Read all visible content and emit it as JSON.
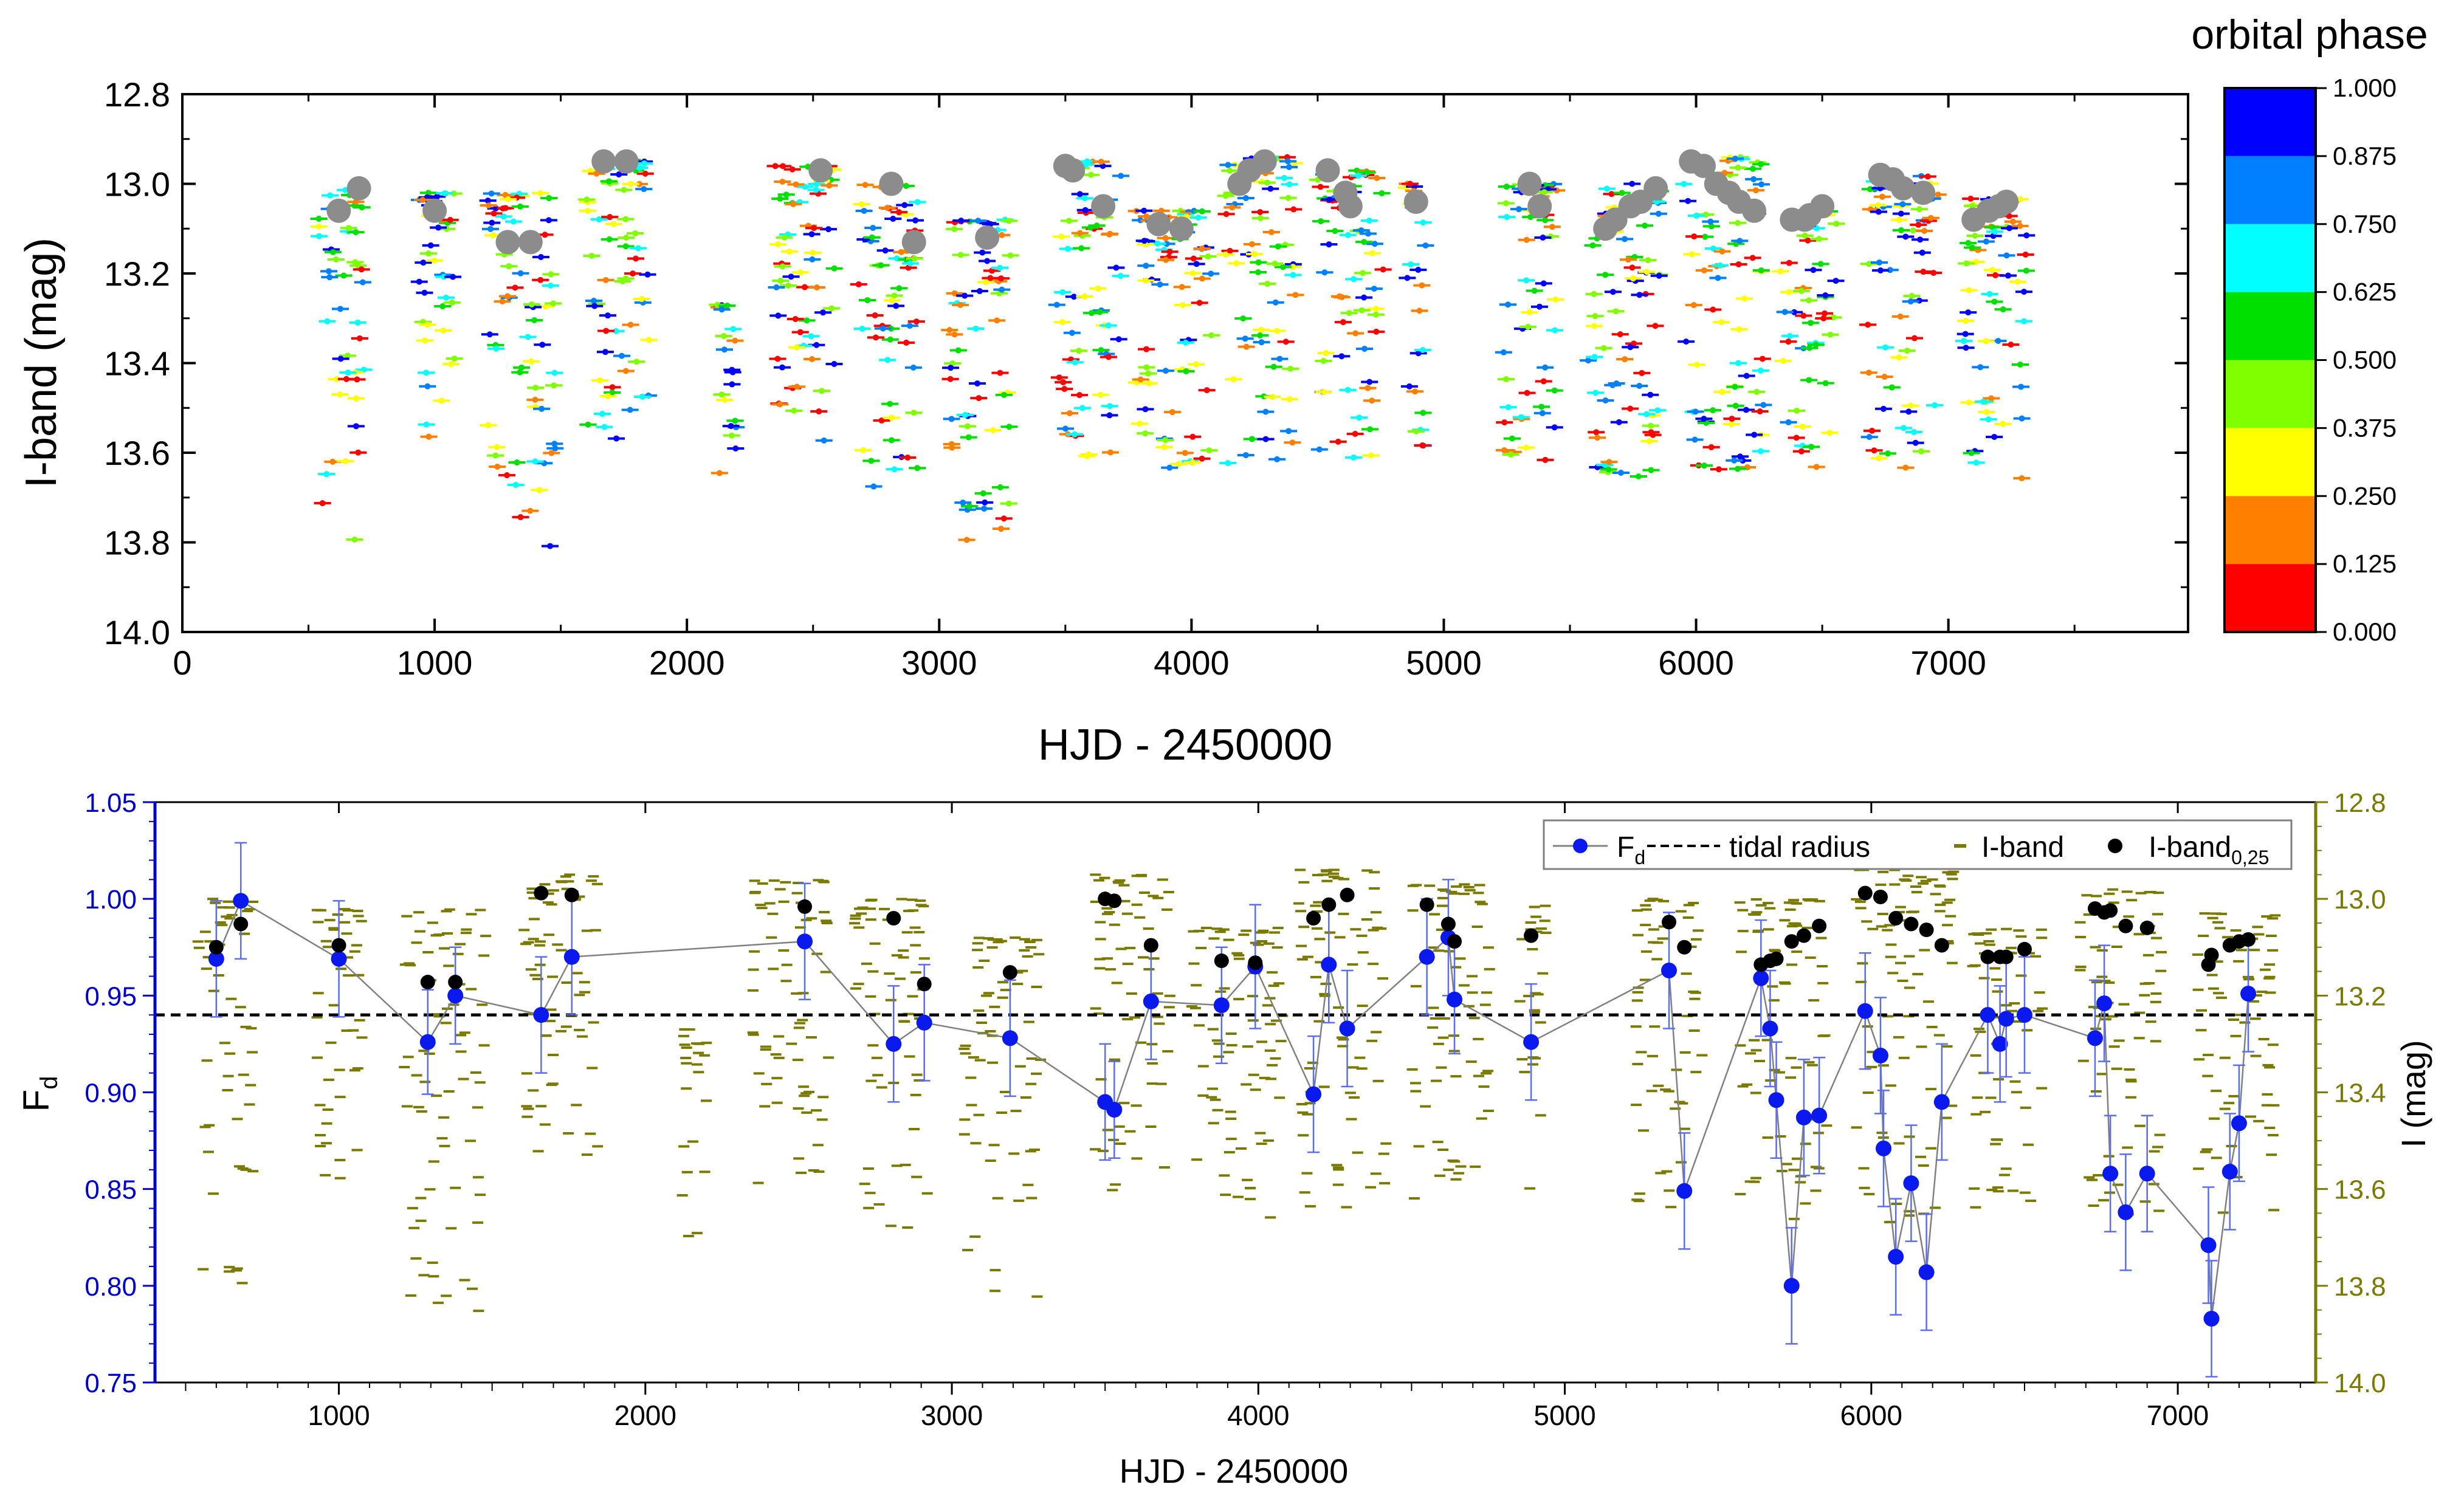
{
  "chart_data": [
    {
      "type": "scatter",
      "panel": "top",
      "xlabel": "HJD - 2450000",
      "ylabel": "I-band (mag)",
      "xlim": [
        0,
        7950
      ],
      "ylim": [
        14.0,
        12.8
      ],
      "y_inverted": true,
      "xticks": [
        "0",
        "1000",
        "2000",
        "3000",
        "4000",
        "5000",
        "6000",
        "7000"
      ],
      "yticks": [
        "12.8",
        "13.0",
        "13.2",
        "13.4",
        "13.6",
        "13.8",
        "14.0"
      ],
      "colorbar": {
        "title": "orbital phase",
        "ticks": [
          "0.000",
          "0.125",
          "0.250",
          "0.375",
          "0.500",
          "0.625",
          "0.750",
          "0.875",
          "1.000"
        ],
        "colors": [
          "#ff0000",
          "#ff8000",
          "#ffff00",
          "#80ff00",
          "#00e000",
          "#00ffff",
          "#0080ff",
          "#0000ff"
        ]
      },
      "observing_seasons": [
        {
          "start": 540,
          "end": 720,
          "top": 13.0,
          "bottom": 13.8
        },
        {
          "start": 920,
          "end": 1080,
          "top": 13.02,
          "bottom": 13.58
        },
        {
          "start": 1210,
          "end": 1480,
          "top": 13.02,
          "bottom": 13.86
        },
        {
          "start": 1600,
          "end": 1850,
          "top": 12.95,
          "bottom": 13.58
        },
        {
          "start": 2120,
          "end": 2200,
          "top": 13.27,
          "bottom": 13.7
        },
        {
          "start": 2350,
          "end": 2600,
          "top": 12.96,
          "bottom": 13.62
        },
        {
          "start": 2680,
          "end": 2920,
          "top": 13.0,
          "bottom": 13.68
        },
        {
          "start": 3040,
          "end": 3290,
          "top": 13.08,
          "bottom": 13.84
        },
        {
          "start": 3460,
          "end": 3720,
          "top": 12.95,
          "bottom": 13.62
        },
        {
          "start": 3780,
          "end": 4080,
          "top": 13.06,
          "bottom": 13.67
        },
        {
          "start": 4130,
          "end": 4420,
          "top": 12.94,
          "bottom": 13.64
        },
        {
          "start": 4500,
          "end": 4760,
          "top": 12.97,
          "bottom": 13.62
        },
        {
          "start": 4850,
          "end": 4940,
          "top": 13.0,
          "bottom": 13.6
        },
        {
          "start": 5230,
          "end": 5450,
          "top": 13.0,
          "bottom": 13.64
        },
        {
          "start": 5570,
          "end": 5860,
          "top": 13.0,
          "bottom": 13.67
        },
        {
          "start": 5950,
          "end": 6270,
          "top": 12.94,
          "bottom": 13.67
        },
        {
          "start": 6330,
          "end": 6560,
          "top": 13.06,
          "bottom": 13.64
        },
        {
          "start": 6680,
          "end": 6960,
          "top": 12.98,
          "bottom": 13.66
        },
        {
          "start": 7060,
          "end": 7320,
          "top": 13.03,
          "bottom": 13.66
        }
      ],
      "phase_025_points": [
        {
          "x": 620,
          "y": 13.06
        },
        {
          "x": 700,
          "y": 13.01
        },
        {
          "x": 1000,
          "y": 13.06
        },
        {
          "x": 1290,
          "y": 13.13
        },
        {
          "x": 1380,
          "y": 13.13
        },
        {
          "x": 1670,
          "y": 12.95
        },
        {
          "x": 1760,
          "y": 12.95
        },
        {
          "x": 2530,
          "y": 12.97
        },
        {
          "x": 2810,
          "y": 13.0
        },
        {
          "x": 2900,
          "y": 13.13
        },
        {
          "x": 3190,
          "y": 13.12
        },
        {
          "x": 3500,
          "y": 12.96
        },
        {
          "x": 3530,
          "y": 12.97
        },
        {
          "x": 3650,
          "y": 13.05
        },
        {
          "x": 3870,
          "y": 13.09
        },
        {
          "x": 3960,
          "y": 13.1
        },
        {
          "x": 4190,
          "y": 13.0
        },
        {
          "x": 4230,
          "y": 12.97
        },
        {
          "x": 4290,
          "y": 12.95
        },
        {
          "x": 4540,
          "y": 12.97
        },
        {
          "x": 4610,
          "y": 13.02
        },
        {
          "x": 4630,
          "y": 13.05
        },
        {
          "x": 4890,
          "y": 13.04
        },
        {
          "x": 5340,
          "y": 13.0
        },
        {
          "x": 5380,
          "y": 13.05
        },
        {
          "x": 5640,
          "y": 13.1
        },
        {
          "x": 5680,
          "y": 13.08
        },
        {
          "x": 5740,
          "y": 13.05
        },
        {
          "x": 5780,
          "y": 13.04
        },
        {
          "x": 5840,
          "y": 13.01
        },
        {
          "x": 5980,
          "y": 12.95
        },
        {
          "x": 6030,
          "y": 12.96
        },
        {
          "x": 6080,
          "y": 13.0
        },
        {
          "x": 6130,
          "y": 13.02
        },
        {
          "x": 6170,
          "y": 13.04
        },
        {
          "x": 6230,
          "y": 13.06
        },
        {
          "x": 6380,
          "y": 13.08
        },
        {
          "x": 6430,
          "y": 13.08
        },
        {
          "x": 6450,
          "y": 13.07
        },
        {
          "x": 6500,
          "y": 13.05
        },
        {
          "x": 6730,
          "y": 12.98
        },
        {
          "x": 6780,
          "y": 12.99
        },
        {
          "x": 6820,
          "y": 13.01
        },
        {
          "x": 6900,
          "y": 13.02
        },
        {
          "x": 7100,
          "y": 13.08
        },
        {
          "x": 7160,
          "y": 13.06
        },
        {
          "x": 7200,
          "y": 13.05
        },
        {
          "x": 7230,
          "y": 13.04
        }
      ]
    },
    {
      "type": "scatter",
      "panel": "bottom",
      "xlabel": "HJD - 2450000",
      "ylabel": "F",
      "ylabel_sub": "d",
      "y2label": "I (mag)",
      "xlim": [
        400,
        7450
      ],
      "ylim": [
        0.75,
        1.05
      ],
      "y2lim": [
        14.0,
        12.8
      ],
      "y2_inverted": true,
      "xticks": [
        "1000",
        "2000",
        "3000",
        "4000",
        "5000",
        "6000",
        "7000"
      ],
      "yticks": [
        "0.75",
        "0.80",
        "0.85",
        "0.90",
        "0.95",
        "1.00",
        "1.05"
      ],
      "y2ticks": [
        "12.8",
        "13.0",
        "13.2",
        "13.4",
        "13.6",
        "13.8",
        "14.0"
      ],
      "tidal_radius": 0.94,
      "legend": {
        "fd": "F",
        "fd_sub": "d",
        "tidal": "tidal radius",
        "iband": "I-band",
        "iband025": "I-band",
        "iband025_sub": "0,25"
      },
      "fd_series": [
        {
          "x": 600,
          "y": 0.969,
          "err": 0.03
        },
        {
          "x": 680,
          "y": 0.999,
          "err": 0.03
        },
        {
          "x": 1000,
          "y": 0.969,
          "err": 0.03
        },
        {
          "x": 1290,
          "y": 0.926,
          "err": 0.027
        },
        {
          "x": 1380,
          "y": 0.95,
          "err": 0.025
        },
        {
          "x": 1660,
          "y": 0.94,
          "err": 0.03
        },
        {
          "x": 1760,
          "y": 0.97,
          "err": 0.03
        },
        {
          "x": 2520,
          "y": 0.978,
          "err": 0.03
        },
        {
          "x": 2810,
          "y": 0.925,
          "err": 0.03
        },
        {
          "x": 2910,
          "y": 0.936,
          "err": 0.03
        },
        {
          "x": 3190,
          "y": 0.928,
          "err": 0.03
        },
        {
          "x": 3500,
          "y": 0.895,
          "err": 0.03
        },
        {
          "x": 3530,
          "y": 0.891,
          "err": 0.025
        },
        {
          "x": 3650,
          "y": 0.947,
          "err": 0.03
        },
        {
          "x": 3880,
          "y": 0.945,
          "err": 0.03
        },
        {
          "x": 3990,
          "y": 0.965,
          "err": 0.032
        },
        {
          "x": 4180,
          "y": 0.899,
          "err": 0.03
        },
        {
          "x": 4230,
          "y": 0.966,
          "err": 0.03
        },
        {
          "x": 4290,
          "y": 0.933,
          "err": 0.03
        },
        {
          "x": 4550,
          "y": 0.97,
          "err": 0.03
        },
        {
          "x": 4620,
          "y": 0.98,
          "err": 0.03
        },
        {
          "x": 4640,
          "y": 0.948,
          "err": 0.028
        },
        {
          "x": 4890,
          "y": 0.926,
          "err": 0.03
        },
        {
          "x": 5340,
          "y": 0.963,
          "err": 0.03
        },
        {
          "x": 5390,
          "y": 0.849,
          "err": 0.03
        },
        {
          "x": 5640,
          "y": 0.959,
          "err": 0.03
        },
        {
          "x": 5670,
          "y": 0.933,
          "err": 0.03
        },
        {
          "x": 5690,
          "y": 0.896,
          "err": 0.03
        },
        {
          "x": 5740,
          "y": 0.8,
          "err": 0.03
        },
        {
          "x": 5780,
          "y": 0.887,
          "err": 0.03
        },
        {
          "x": 5830,
          "y": 0.888,
          "err": 0.03
        },
        {
          "x": 5980,
          "y": 0.942,
          "err": 0.03
        },
        {
          "x": 6030,
          "y": 0.919,
          "err": 0.03
        },
        {
          "x": 6040,
          "y": 0.871,
          "err": 0.03
        },
        {
          "x": 6080,
          "y": 0.815,
          "err": 0.03
        },
        {
          "x": 6130,
          "y": 0.853,
          "err": 0.03
        },
        {
          "x": 6180,
          "y": 0.807,
          "err": 0.03
        },
        {
          "x": 6230,
          "y": 0.895,
          "err": 0.03
        },
        {
          "x": 6380,
          "y": 0.94,
          "err": 0.03
        },
        {
          "x": 6420,
          "y": 0.925,
          "err": 0.03
        },
        {
          "x": 6440,
          "y": 0.938,
          "err": 0.03
        },
        {
          "x": 6500,
          "y": 0.94,
          "err": 0.03
        },
        {
          "x": 6730,
          "y": 0.928,
          "err": 0.03
        },
        {
          "x": 6760,
          "y": 0.946,
          "err": 0.03
        },
        {
          "x": 6780,
          "y": 0.858,
          "err": 0.03
        },
        {
          "x": 6830,
          "y": 0.838,
          "err": 0.03
        },
        {
          "x": 6900,
          "y": 0.858,
          "err": 0.03
        },
        {
          "x": 7100,
          "y": 0.821,
          "err": 0.03
        },
        {
          "x": 7110,
          "y": 0.783,
          "err": 0.03
        },
        {
          "x": 7170,
          "y": 0.859,
          "err": 0.03
        },
        {
          "x": 7200,
          "y": 0.884,
          "err": 0.03
        },
        {
          "x": 7230,
          "y": 0.951,
          "err": 0.03
        }
      ],
      "iband025_points": [
        {
          "x": 600,
          "y": 0.975
        },
        {
          "x": 680,
          "y": 0.987
        },
        {
          "x": 1000,
          "y": 0.976
        },
        {
          "x": 1290,
          "y": 0.957
        },
        {
          "x": 1380,
          "y": 0.957
        },
        {
          "x": 1660,
          "y": 1.003
        },
        {
          "x": 1760,
          "y": 1.002
        },
        {
          "x": 2520,
          "y": 0.996
        },
        {
          "x": 2810,
          "y": 0.99
        },
        {
          "x": 2910,
          "y": 0.956
        },
        {
          "x": 3190,
          "y": 0.962
        },
        {
          "x": 3500,
          "y": 1.0
        },
        {
          "x": 3530,
          "y": 0.999
        },
        {
          "x": 3650,
          "y": 0.976
        },
        {
          "x": 3880,
          "y": 0.968
        },
        {
          "x": 3990,
          "y": 0.967
        },
        {
          "x": 4180,
          "y": 0.99
        },
        {
          "x": 4230,
          "y": 0.997
        },
        {
          "x": 4290,
          "y": 1.002
        },
        {
          "x": 4550,
          "y": 0.997
        },
        {
          "x": 4620,
          "y": 0.987
        },
        {
          "x": 4640,
          "y": 0.978
        },
        {
          "x": 4890,
          "y": 0.981
        },
        {
          "x": 5340,
          "y": 0.988
        },
        {
          "x": 5390,
          "y": 0.975
        },
        {
          "x": 5640,
          "y": 0.966
        },
        {
          "x": 5670,
          "y": 0.968
        },
        {
          "x": 5690,
          "y": 0.969
        },
        {
          "x": 5740,
          "y": 0.978
        },
        {
          "x": 5780,
          "y": 0.981
        },
        {
          "x": 5830,
          "y": 0.986
        },
        {
          "x": 5980,
          "y": 1.003
        },
        {
          "x": 6030,
          "y": 1.001
        },
        {
          "x": 6080,
          "y": 0.99
        },
        {
          "x": 6130,
          "y": 0.987
        },
        {
          "x": 6180,
          "y": 0.984
        },
        {
          "x": 6230,
          "y": 0.976
        },
        {
          "x": 6380,
          "y": 0.97
        },
        {
          "x": 6420,
          "y": 0.97
        },
        {
          "x": 6440,
          "y": 0.97
        },
        {
          "x": 6500,
          "y": 0.974
        },
        {
          "x": 6730,
          "y": 0.995
        },
        {
          "x": 6760,
          "y": 0.993
        },
        {
          "x": 6780,
          "y": 0.994
        },
        {
          "x": 6830,
          "y": 0.986
        },
        {
          "x": 6900,
          "y": 0.985
        },
        {
          "x": 7100,
          "y": 0.966
        },
        {
          "x": 7110,
          "y": 0.971
        },
        {
          "x": 7170,
          "y": 0.976
        },
        {
          "x": 7200,
          "y": 0.978
        },
        {
          "x": 7230,
          "y": 0.979
        }
      ]
    }
  ]
}
